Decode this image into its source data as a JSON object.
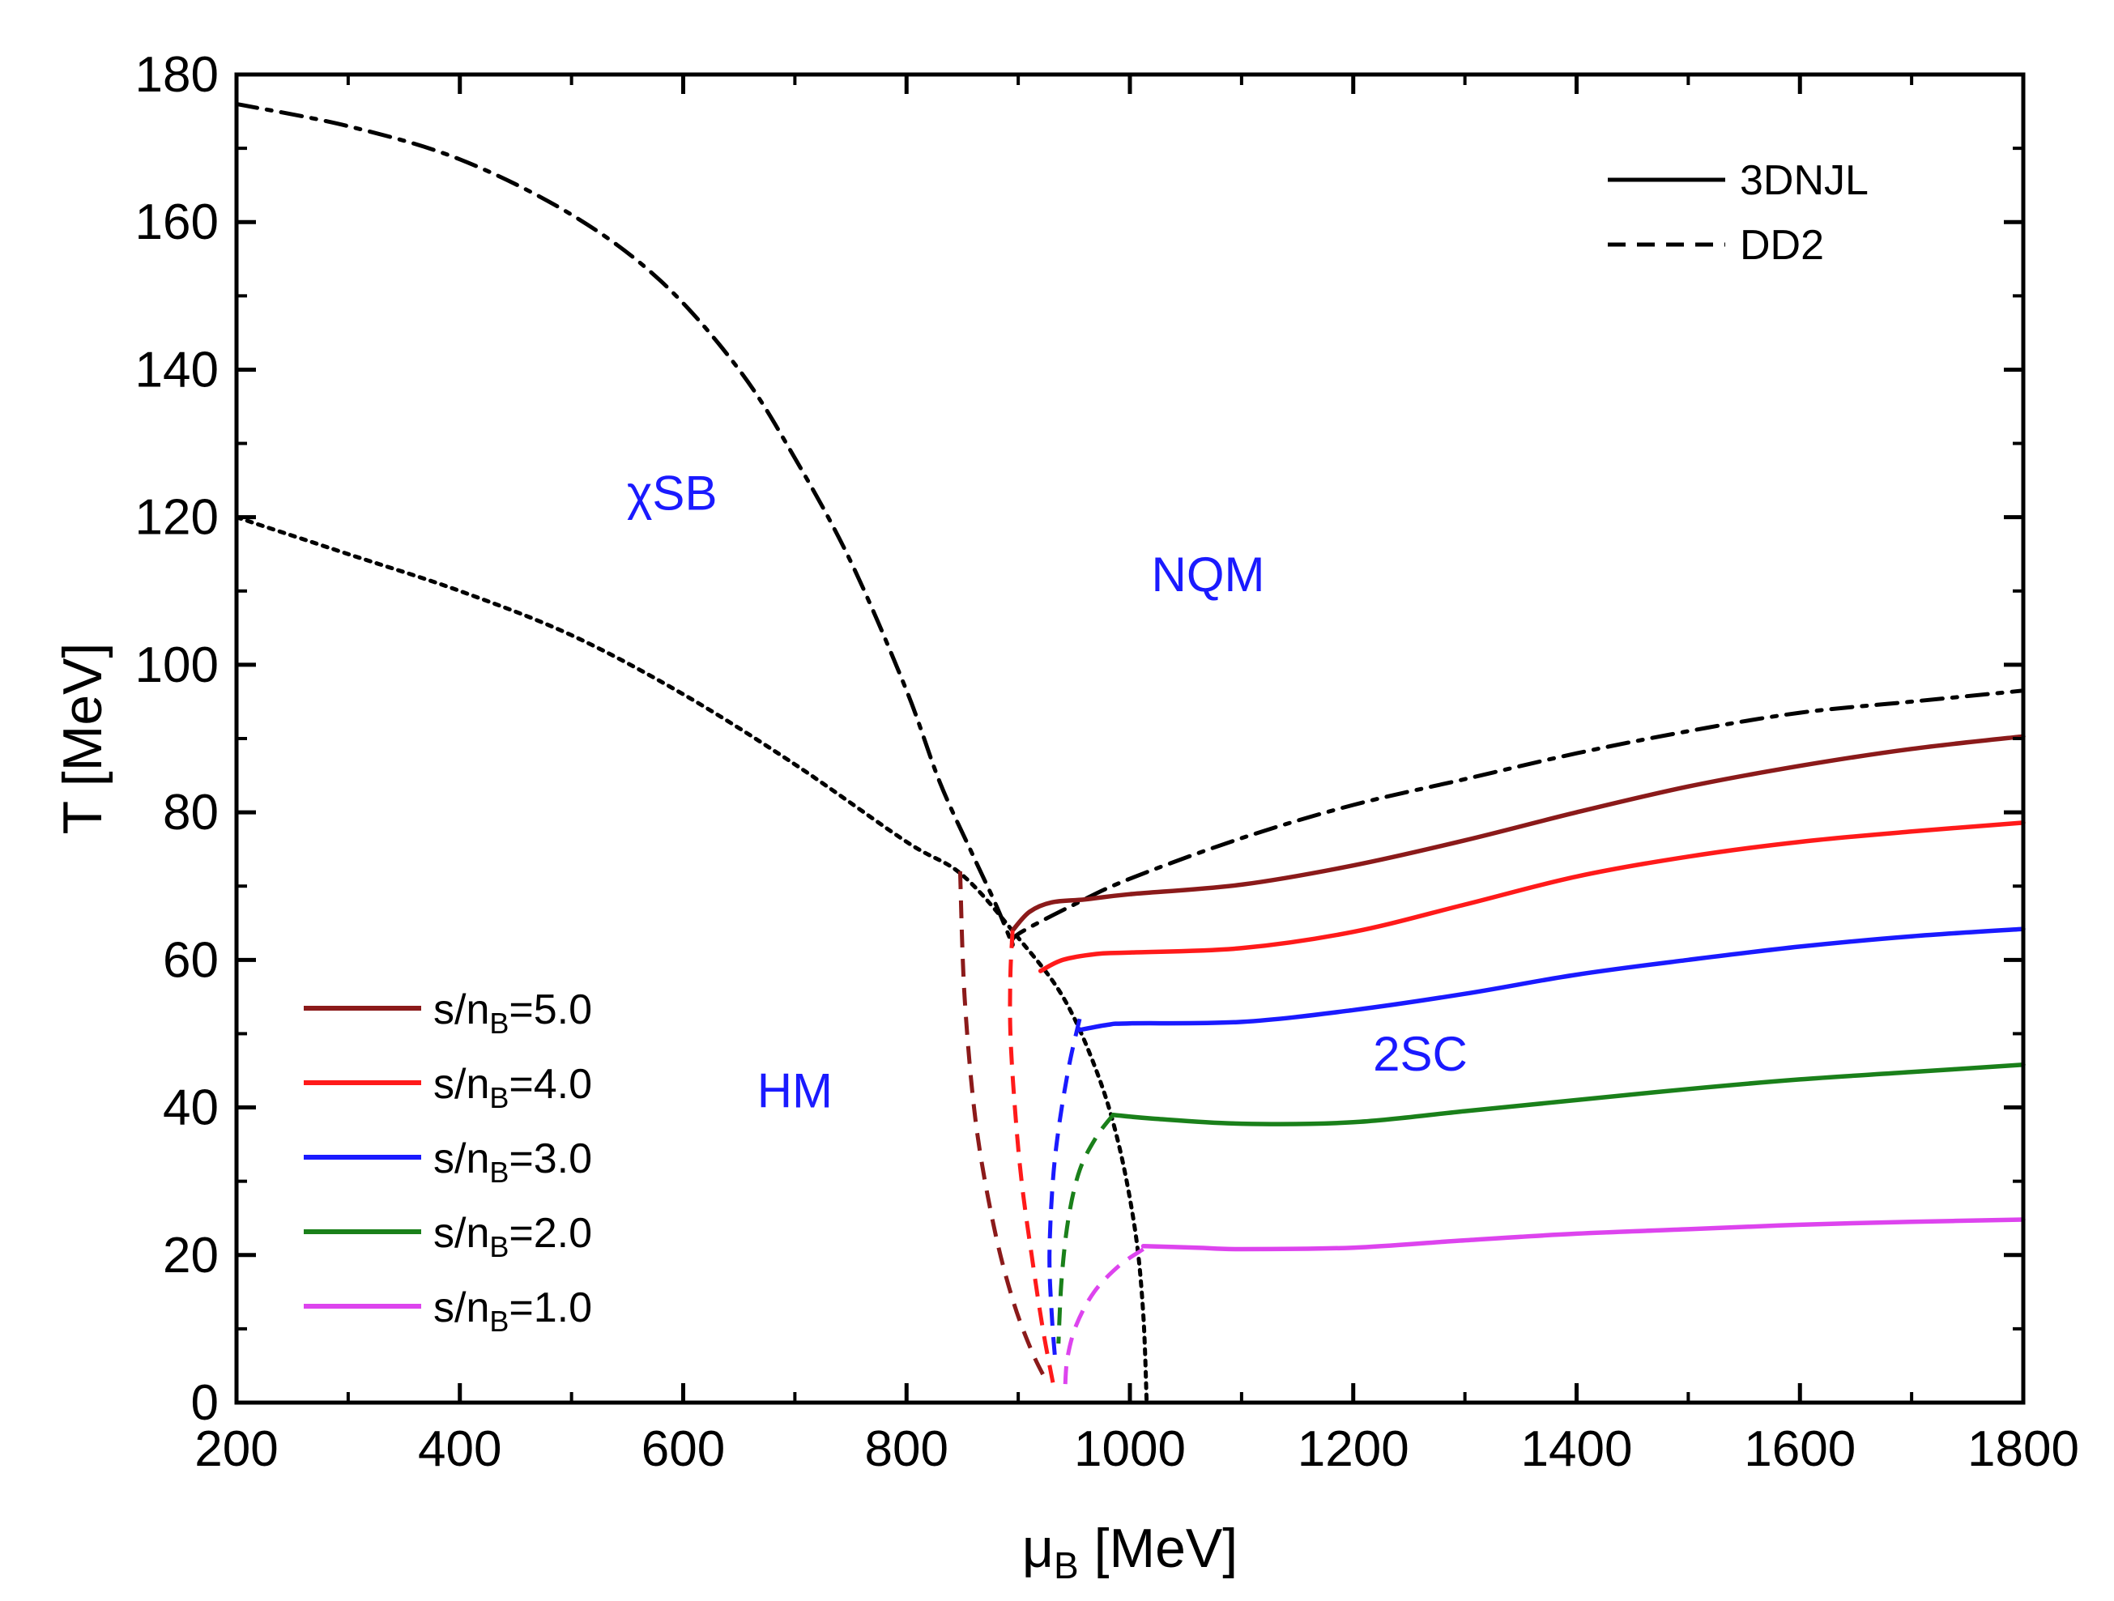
{
  "chart_data": {
    "type": "line",
    "xlabel": "μ_B [MeV]",
    "ylabel": "T [MeV]",
    "xlim": [
      200,
      1800
    ],
    "ylim": [
      0,
      180
    ],
    "xticks": [
      "200",
      "400",
      "600",
      "800",
      "1000",
      "1200",
      "1400",
      "1600",
      "1800"
    ],
    "yticks": [
      "0",
      "20",
      "40",
      "60",
      "80",
      "100",
      "120",
      "140",
      "160",
      "180"
    ],
    "style_legend": [
      {
        "label": "3DNJL",
        "dash": "solid"
      },
      {
        "label": "DD2",
        "dash": "dashed"
      }
    ],
    "legend": [
      {
        "label": "s/nB=5.0",
        "prefix": "s/n",
        "sub": "B",
        "suffix": "=5.0",
        "color": "#8b1a1a"
      },
      {
        "label": "s/nB=4.0",
        "prefix": "s/n",
        "sub": "B",
        "suffix": "=4.0",
        "color": "#ff1a1a"
      },
      {
        "label": "s/nB=3.0",
        "prefix": "s/n",
        "sub": "B",
        "suffix": "=3.0",
        "color": "#1a1aff"
      },
      {
        "label": "s/nB=2.0",
        "prefix": "s/n",
        "sub": "B",
        "suffix": "=2.0",
        "color": "#1a801a"
      },
      {
        "label": "s/nB=1.0",
        "prefix": "s/n",
        "sub": "B",
        "suffix": "=1.0",
        "color": "#dd44ee"
      }
    ],
    "regions": [
      {
        "label": "χSB",
        "x": 590,
        "y": 121
      },
      {
        "label": "NQM",
        "x": 1070,
        "y": 110
      },
      {
        "label": "HM",
        "x": 700,
        "y": 40
      },
      {
        "label": "2SC",
        "x": 1260,
        "y": 45
      }
    ],
    "region_color": "#1a1aff",
    "boundaries": [
      {
        "name": "chiral-crossover",
        "dash": "dashdot",
        "color": "#000000",
        "points": [
          [
            200,
            176
          ],
          [
            300,
            173
          ],
          [
            400,
            168.5
          ],
          [
            500,
            161
          ],
          [
            580,
            152
          ],
          [
            650,
            140
          ],
          [
            700,
            128
          ],
          [
            750,
            114
          ],
          [
            800,
            96.5
          ],
          [
            830,
            84
          ],
          [
            860,
            74
          ],
          [
            880,
            67.5
          ],
          [
            895,
            62
          ]
        ]
      },
      {
        "name": "2sc-boundary",
        "dash": "dashdot",
        "color": "#000000",
        "points": [
          [
            895,
            62
          ],
          [
            900,
            63.5
          ],
          [
            950,
            67.5
          ],
          [
            1000,
            71
          ],
          [
            1100,
            76.5
          ],
          [
            1200,
            81
          ],
          [
            1300,
            84.5
          ],
          [
            1400,
            88
          ],
          [
            1500,
            91
          ],
          [
            1600,
            93.5
          ],
          [
            1700,
            95
          ],
          [
            1800,
            96.5
          ]
        ]
      },
      {
        "name": "hadron-quark-transition",
        "dash": "dotted",
        "color": "#000000",
        "points": [
          [
            200,
            120
          ],
          [
            300,
            115
          ],
          [
            400,
            110
          ],
          [
            500,
            104
          ],
          [
            600,
            96
          ],
          [
            700,
            86.5
          ],
          [
            800,
            76
          ],
          [
            850,
            71.5
          ],
          [
            900,
            63
          ],
          [
            940,
            55
          ],
          [
            970,
            45
          ],
          [
            990,
            35
          ],
          [
            1005,
            23
          ],
          [
            1012,
            12
          ],
          [
            1015,
            0
          ]
        ]
      }
    ],
    "series": [
      {
        "name": "s/nB=5.0",
        "color": "#8b1a1a",
        "dd2": [
          [
            848,
            72
          ],
          [
            852,
            55
          ],
          [
            862,
            38
          ],
          [
            878,
            24
          ],
          [
            895,
            14
          ],
          [
            912,
            7
          ],
          [
            925,
            3
          ]
        ],
        "njl": [
          [
            895,
            64
          ],
          [
            910,
            66.5
          ],
          [
            930,
            67.8
          ],
          [
            960,
            68.2
          ],
          [
            1000,
            68.9
          ],
          [
            1100,
            70.2
          ],
          [
            1200,
            72.8
          ],
          [
            1300,
            76.2
          ],
          [
            1400,
            80
          ],
          [
            1500,
            83.5
          ],
          [
            1600,
            86.3
          ],
          [
            1700,
            88.6
          ],
          [
            1800,
            90.3
          ]
        ]
      },
      {
        "name": "s/nB=4.0",
        "color": "#ff1a1a",
        "dd2": [
          [
            895,
            64
          ],
          [
            893,
            58
          ],
          [
            893,
            50
          ],
          [
            897,
            40
          ],
          [
            903,
            30
          ],
          [
            912,
            20
          ],
          [
            922,
            10
          ],
          [
            932,
            2
          ]
        ],
        "njl": [
          [
            920,
            58.5
          ],
          [
            940,
            60
          ],
          [
            970,
            60.8
          ],
          [
            1000,
            61
          ],
          [
            1100,
            61.6
          ],
          [
            1200,
            63.8
          ],
          [
            1300,
            67.5
          ],
          [
            1400,
            71.3
          ],
          [
            1500,
            74
          ],
          [
            1600,
            76
          ],
          [
            1700,
            77.4
          ],
          [
            1800,
            78.6
          ]
        ]
      },
      {
        "name": "s/nB=3.0",
        "color": "#1a1aff",
        "dd2": [
          [
            955,
            52
          ],
          [
            946,
            46
          ],
          [
            937,
            38
          ],
          [
            931,
            30
          ],
          [
            928,
            20
          ],
          [
            930,
            12
          ],
          [
            933,
            6
          ]
        ],
        "njl": [
          [
            955,
            50.5
          ],
          [
            980,
            51.2
          ],
          [
            1000,
            51.4
          ],
          [
            1100,
            51.6
          ],
          [
            1200,
            53.2
          ],
          [
            1300,
            55.4
          ],
          [
            1400,
            58
          ],
          [
            1500,
            60
          ],
          [
            1600,
            61.8
          ],
          [
            1700,
            63.2
          ],
          [
            1800,
            64.2
          ]
        ]
      },
      {
        "name": "s/nB=2.0",
        "color": "#1a801a",
        "dd2": [
          [
            985,
            39
          ],
          [
            970,
            36
          ],
          [
            955,
            31.5
          ],
          [
            945,
            25
          ],
          [
            939,
            17
          ],
          [
            936,
            8
          ]
        ],
        "njl": [
          [
            985,
            39
          ],
          [
            1020,
            38.5
          ],
          [
            1100,
            37.8
          ],
          [
            1200,
            38
          ],
          [
            1300,
            39.5
          ],
          [
            1400,
            41
          ],
          [
            1500,
            42.5
          ],
          [
            1600,
            43.8
          ],
          [
            1700,
            44.8
          ],
          [
            1800,
            45.8
          ]
        ]
      },
      {
        "name": "s/nB=1.0",
        "color": "#dd44ee",
        "dd2": [
          [
            1012,
            20.8
          ],
          [
            990,
            18.5
          ],
          [
            968,
            15
          ],
          [
            952,
            10.5
          ],
          [
            944,
            6
          ],
          [
            942,
            2
          ]
        ],
        "njl": [
          [
            1012,
            21.2
          ],
          [
            1060,
            21
          ],
          [
            1100,
            20.8
          ],
          [
            1200,
            21
          ],
          [
            1300,
            22
          ],
          [
            1400,
            22.9
          ],
          [
            1500,
            23.5
          ],
          [
            1600,
            24.1
          ],
          [
            1700,
            24.5
          ],
          [
            1800,
            24.8
          ]
        ]
      }
    ]
  }
}
